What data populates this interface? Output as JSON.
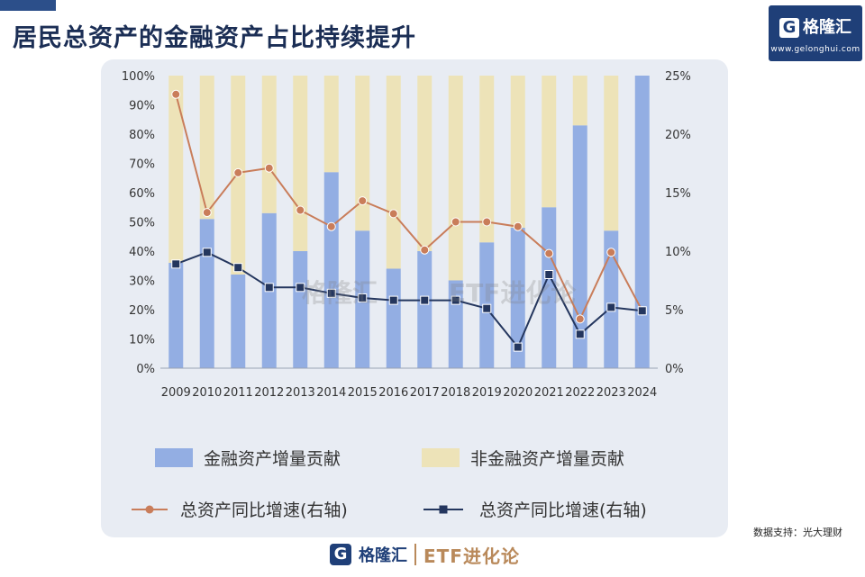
{
  "title": "居民总资产的金融资产占比持续提升",
  "brand": {
    "name": "格隆汇",
    "url": "www.gelonghui.com",
    "column": "ETF进化论"
  },
  "watermark": {
    "left": "格隆汇",
    "right": "ETF进化论",
    "url": "www.gelonghui.com"
  },
  "source": "数据支持：光大理财",
  "chart_data": {
    "type": "bar",
    "categories": [
      "2009",
      "2010",
      "2011",
      "2012",
      "2013",
      "2014",
      "2015",
      "2016",
      "2017",
      "2018",
      "2019",
      "2020",
      "2021",
      "2022",
      "2023",
      "2024"
    ],
    "left_axis": {
      "ticks": [
        "0%",
        "10%",
        "20%",
        "30%",
        "40%",
        "50%",
        "60%",
        "70%",
        "80%",
        "90%",
        "100%"
      ],
      "ylim": [
        0,
        100
      ]
    },
    "right_axis": {
      "ticks": [
        "0%",
        "5%",
        "10%",
        "15%",
        "20%",
        "25%"
      ],
      "ylim": [
        0,
        25
      ]
    },
    "bars": [
      {
        "name": "金融资产增量贡献",
        "color": "#93aee3",
        "values": [
          36,
          51,
          32,
          53,
          40,
          67,
          47,
          34,
          40,
          30,
          43,
          48,
          55,
          83,
          47,
          100
        ]
      },
      {
        "name": "非金融资产增量贡献",
        "color": "#ede3b8",
        "values": [
          64,
          49,
          68,
          47,
          60,
          33,
          53,
          66,
          60,
          70,
          57,
          52,
          45,
          17,
          53,
          0
        ]
      }
    ],
    "lines": [
      {
        "name": "总资产同比增速(右轴)",
        "color": "#c97d5a",
        "marker": "circle",
        "axis": "right",
        "values": [
          23.4,
          13.3,
          16.7,
          17.1,
          13.5,
          12.1,
          14.3,
          13.2,
          10.1,
          12.5,
          12.5,
          12.1,
          9.8,
          4.2,
          9.9,
          4.9
        ]
      },
      {
        "name": "总资产同比增速(右轴)",
        "color": "#24365e",
        "marker": "square",
        "axis": "right",
        "values": [
          8.9,
          9.9,
          8.6,
          6.9,
          6.9,
          6.4,
          6.0,
          5.8,
          5.8,
          5.8,
          5.1,
          1.8,
          8.0,
          2.9,
          5.2,
          4.9
        ]
      }
    ]
  }
}
